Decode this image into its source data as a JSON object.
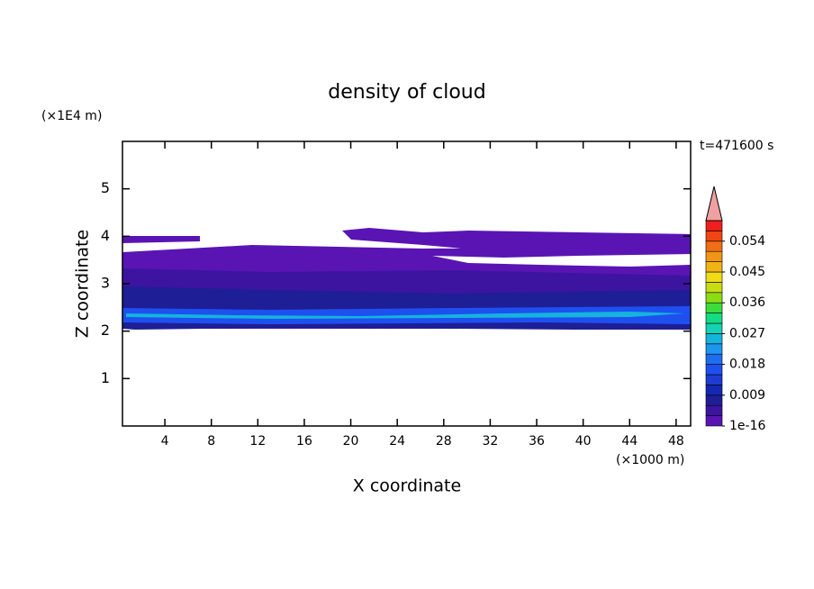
{
  "chart_data": {
    "type": "contour",
    "title": "density of cloud",
    "xlabel": "X coordinate",
    "ylabel": "Z coordinate",
    "xunit": "(×1000 m)",
    "yunit": "(×1E4 m)",
    "time_label": "t=471600 s",
    "xlim": [
      0.35,
      49.25
    ],
    "xticks": [
      4,
      8,
      12,
      16,
      20,
      24,
      28,
      32,
      36,
      40,
      44,
      48
    ],
    "ylim": [
      0,
      6
    ],
    "yticks": [
      1,
      2,
      3,
      4,
      5
    ],
    "colorbar": {
      "lim": [
        0,
        0.06
      ],
      "ticks": [
        1e-16,
        0.009,
        0.018,
        0.027,
        0.036,
        0.045,
        0.054
      ],
      "colors": [
        "#5a14b4",
        "#3c14a0",
        "#1e1e96",
        "#1428b4",
        "#1e3cd2",
        "#1e50f0",
        "#1e6ef0",
        "#1e96f0",
        "#14b4dc",
        "#14d2b4",
        "#14dc82",
        "#3cdc3c",
        "#8cdc14",
        "#c8dc14",
        "#f0dc14",
        "#f0b414",
        "#f09614",
        "#f06e14",
        "#f04614",
        "#f01e1e"
      ],
      "extend_color": "#f0a0a0"
    }
  }
}
